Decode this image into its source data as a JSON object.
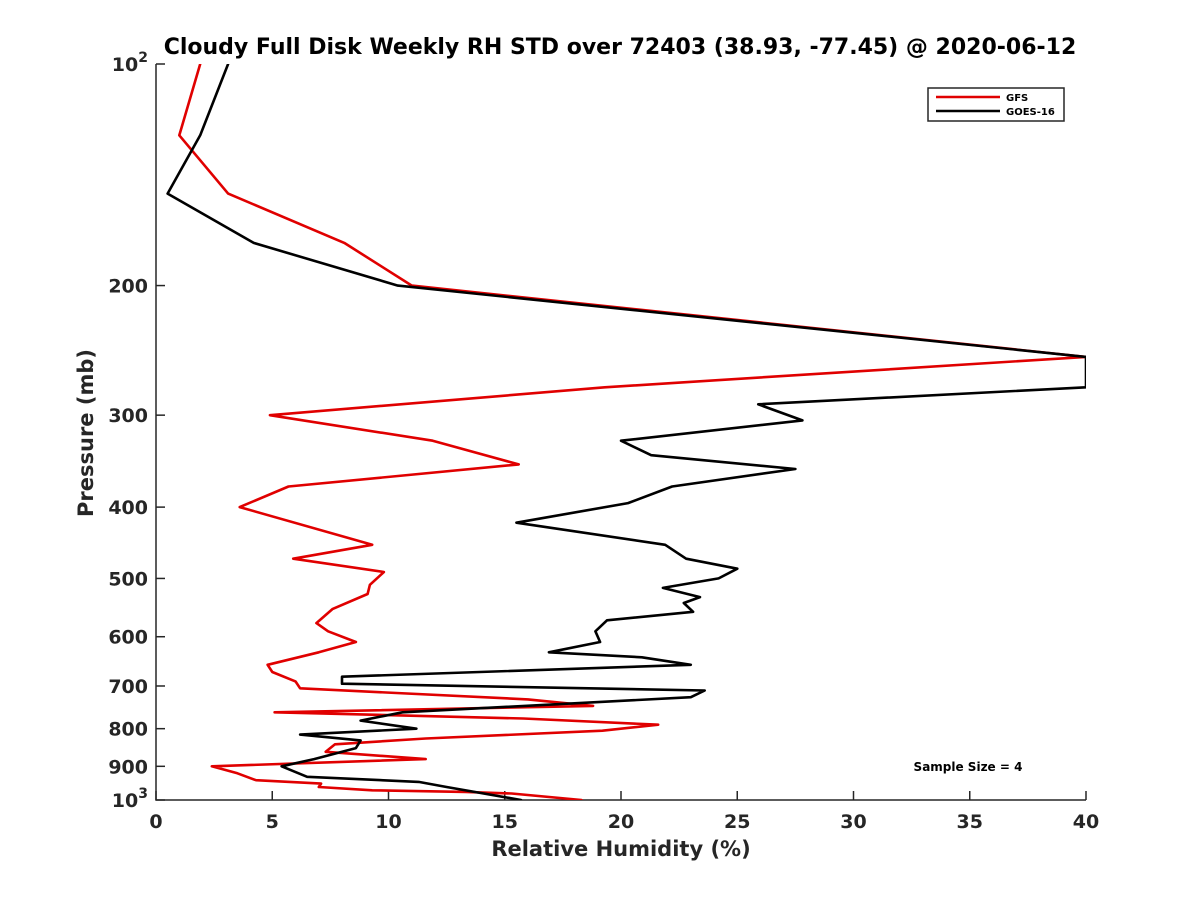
{
  "chart_data": {
    "type": "line",
    "title": "Cloudy Full Disk Weekly RH STD over 72403 (38.93, -77.45) @ 2020-06-12",
    "xlabel": "Relative Humidity (%)",
    "ylabel": "Pressure (mb)",
    "xlim": [
      0,
      40
    ],
    "ylim": [
      100,
      1000
    ],
    "y_scale": "log",
    "y_reversed": true,
    "x_ticks": [
      0,
      5,
      10,
      15,
      20,
      25,
      30,
      35,
      40
    ],
    "x_tick_labels": [
      "0",
      "5",
      "10",
      "15",
      "20",
      "25",
      "30",
      "35",
      "40"
    ],
    "y_ticks": [
      100,
      200,
      300,
      400,
      500,
      600,
      700,
      800,
      900,
      1000
    ],
    "y_tick_labels": [
      {
        "base": "10",
        "exp": "2"
      },
      {
        "base": "200",
        "exp": ""
      },
      {
        "base": "300",
        "exp": ""
      },
      {
        "base": "400",
        "exp": ""
      },
      {
        "base": "500",
        "exp": ""
      },
      {
        "base": "600",
        "exp": ""
      },
      {
        "base": "700",
        "exp": ""
      },
      {
        "base": "800",
        "exp": ""
      },
      {
        "base": "900",
        "exp": ""
      },
      {
        "base": "10",
        "exp": "3"
      }
    ],
    "grid": false,
    "legend_position": "top-right",
    "annotation": "Sample Size = 4",
    "series": [
      {
        "name": "GFS",
        "color": "#e00000",
        "points": [
          [
            1.9,
            100
          ],
          [
            1.0,
            125
          ],
          [
            3.1,
            150
          ],
          [
            8.1,
            175
          ],
          [
            11.0,
            200
          ],
          [
            40.0,
            250
          ],
          [
            19.3,
            275
          ],
          [
            4.9,
            300
          ],
          [
            11.9,
            325
          ],
          [
            15.6,
            350
          ],
          [
            5.7,
            375
          ],
          [
            3.6,
            400
          ],
          [
            9.3,
            450
          ],
          [
            5.9,
            470
          ],
          [
            9.8,
            490
          ],
          [
            9.2,
            510
          ],
          [
            9.1,
            525
          ],
          [
            7.6,
            550
          ],
          [
            6.9,
            575
          ],
          [
            7.4,
            590
          ],
          [
            8.6,
            610
          ],
          [
            7.0,
            630
          ],
          [
            4.8,
            655
          ],
          [
            5.0,
            670
          ],
          [
            6.0,
            690
          ],
          [
            6.2,
            705
          ],
          [
            16.0,
            730
          ],
          [
            18.8,
            745
          ],
          [
            5.1,
            760
          ],
          [
            15.8,
            775
          ],
          [
            21.6,
            790
          ],
          [
            19.2,
            805
          ],
          [
            11.6,
            825
          ],
          [
            7.7,
            840
          ],
          [
            7.3,
            860
          ],
          [
            11.6,
            880
          ],
          [
            2.4,
            900
          ],
          [
            3.5,
            920
          ],
          [
            4.3,
            940
          ],
          [
            7.1,
            950
          ],
          [
            7.0,
            960
          ],
          [
            9.3,
            970
          ],
          [
            13.3,
            975
          ],
          [
            15.3,
            980
          ],
          [
            18.3,
            1000
          ]
        ]
      },
      {
        "name": "GOES-16",
        "color": "#000000",
        "points": [
          [
            3.1,
            100
          ],
          [
            1.9,
            125
          ],
          [
            0.5,
            150
          ],
          [
            4.2,
            175
          ],
          [
            10.4,
            200
          ],
          [
            40.0,
            250
          ],
          [
            40.0,
            275
          ],
          [
            25.9,
            290
          ],
          [
            27.8,
            305
          ],
          [
            20.0,
            325
          ],
          [
            21.3,
            340
          ],
          [
            27.5,
            355
          ],
          [
            22.2,
            375
          ],
          [
            20.3,
            395
          ],
          [
            15.5,
            420
          ],
          [
            21.9,
            450
          ],
          [
            22.8,
            470
          ],
          [
            25.0,
            485
          ],
          [
            24.2,
            500
          ],
          [
            21.8,
            515
          ],
          [
            23.4,
            530
          ],
          [
            22.7,
            540
          ],
          [
            23.1,
            555
          ],
          [
            19.4,
            570
          ],
          [
            18.9,
            590
          ],
          [
            19.1,
            610
          ],
          [
            16.9,
            630
          ],
          [
            20.9,
            640
          ],
          [
            23.0,
            655
          ],
          [
            8.0,
            680
          ],
          [
            8.0,
            695
          ],
          [
            23.6,
            710
          ],
          [
            23.0,
            725
          ],
          [
            10.6,
            760
          ],
          [
            8.8,
            780
          ],
          [
            11.2,
            800
          ],
          [
            6.2,
            815
          ],
          [
            8.8,
            830
          ],
          [
            8.6,
            850
          ],
          [
            6.8,
            880
          ],
          [
            5.4,
            900
          ],
          [
            6.5,
            930
          ],
          [
            11.3,
            945
          ],
          [
            12.5,
            960
          ],
          [
            15.7,
            1000
          ]
        ]
      }
    ]
  }
}
